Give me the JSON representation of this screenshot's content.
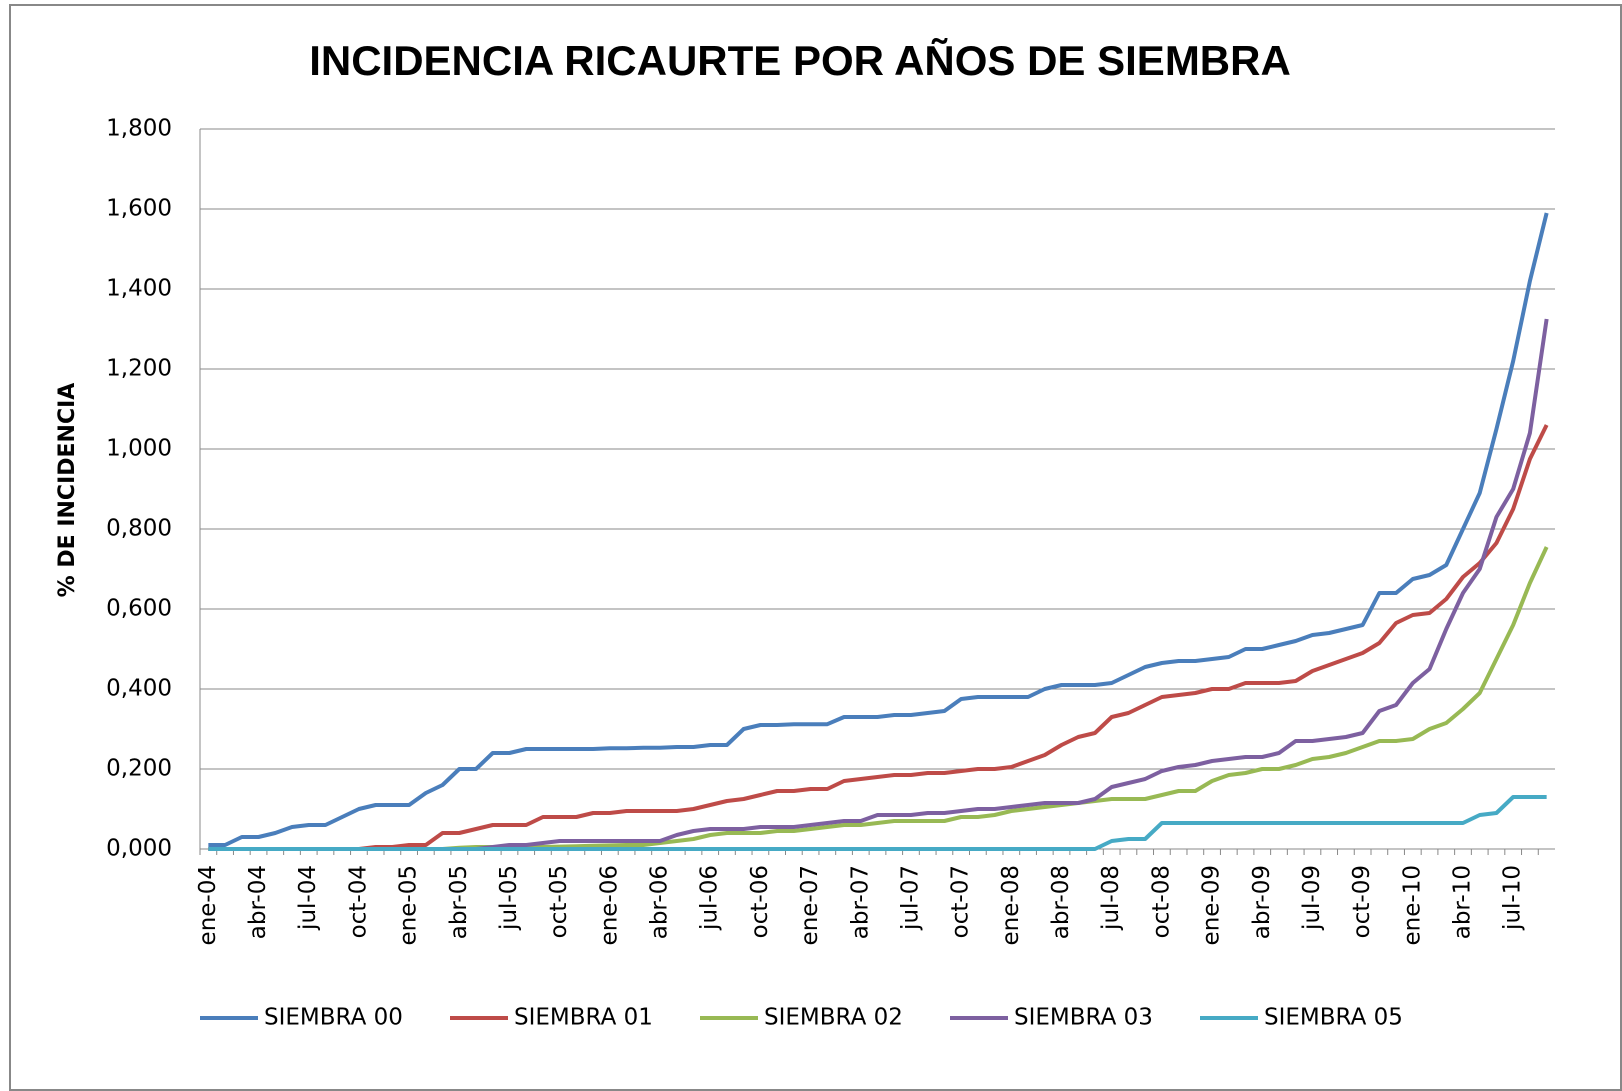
{
  "chart_data": {
    "type": "line",
    "title": "INCIDENCIA RICAURTE POR AÑOS DE SIEMBRA",
    "y_label": "% DE INCIDENCIA",
    "categories": [
      "ene-04",
      null,
      null,
      "abr-04",
      null,
      null,
      "jul-04",
      null,
      null,
      "oct-04",
      null,
      null,
      "ene-05",
      null,
      null,
      "abr-05",
      null,
      null,
      "jul-05",
      null,
      null,
      "oct-05",
      null,
      null,
      "ene-06",
      null,
      null,
      "abr-06",
      null,
      null,
      "jul-06",
      null,
      null,
      "oct-06",
      null,
      null,
      "ene-07",
      null,
      null,
      "abr-07",
      null,
      null,
      "jul-07",
      null,
      null,
      "oct-07",
      null,
      null,
      "ene-08",
      null,
      null,
      "abr-08",
      null,
      null,
      "jul-08",
      null,
      null,
      "oct-08",
      null,
      null,
      "ene-09",
      null,
      null,
      "abr-09",
      null,
      null,
      "jul-09",
      null,
      null,
      "oct-09",
      null,
      null,
      "ene-10",
      null,
      null,
      "abr-10",
      null,
      null,
      "jul-10",
      null,
      null
    ],
    "ylim": [
      0,
      1.8
    ],
    "yticks": [
      {
        "value": 0,
        "label": "0,000"
      },
      {
        "value": 0.2,
        "label": "0,200"
      },
      {
        "value": 0.4,
        "label": "0,400"
      },
      {
        "value": 0.6,
        "label": "0,600"
      },
      {
        "value": 0.8,
        "label": "0,800"
      },
      {
        "value": 1,
        "label": "1,000"
      },
      {
        "value": 1.2,
        "label": "1,200"
      },
      {
        "value": 1.4,
        "label": "1,400"
      },
      {
        "value": 1.6,
        "label": "1,600"
      },
      {
        "value": 1.8,
        "label": "1,800"
      }
    ],
    "grid": true,
    "legend": "bottom",
    "series": [
      {
        "name": "SIEMBRA 00",
        "color": "#4a7ebb",
        "values": [
          0.01,
          0.01,
          0.03,
          0.03,
          0.04,
          0.055,
          0.06,
          0.06,
          0.08,
          0.1,
          0.11,
          0.11,
          0.11,
          0.14,
          0.16,
          0.2,
          0.2,
          0.24,
          0.24,
          0.25,
          0.25,
          0.25,
          0.25,
          0.25,
          0.252,
          0.252,
          0.253,
          0.253,
          0.255,
          0.255,
          0.26,
          0.26,
          0.3,
          0.31,
          0.31,
          0.312,
          0.312,
          0.312,
          0.33,
          0.33,
          0.33,
          0.335,
          0.335,
          0.34,
          0.345,
          0.375,
          0.38,
          0.38,
          0.38,
          0.38,
          0.4,
          0.41,
          0.41,
          0.41,
          0.415,
          0.435,
          0.455,
          0.465,
          0.47,
          0.47,
          0.475,
          0.48,
          0.5,
          0.5,
          0.51,
          0.52,
          0.535,
          0.54,
          0.55,
          0.56,
          0.64,
          0.64,
          0.675,
          0.685,
          0.71,
          0.8,
          0.89,
          1.05,
          1.22,
          1.42,
          1.59
        ]
      },
      {
        "name": "SIEMBRA 01",
        "color": "#be4b48",
        "values": [
          0,
          0,
          0,
          0,
          0,
          0,
          0,
          0,
          0,
          0,
          0.005,
          0.005,
          0.01,
          0.01,
          0.04,
          0.04,
          0.05,
          0.06,
          0.06,
          0.06,
          0.08,
          0.08,
          0.08,
          0.09,
          0.09,
          0.095,
          0.095,
          0.095,
          0.095,
          0.1,
          0.11,
          0.12,
          0.125,
          0.135,
          0.145,
          0.145,
          0.15,
          0.15,
          0.17,
          0.175,
          0.18,
          0.185,
          0.185,
          0.19,
          0.19,
          0.195,
          0.2,
          0.2,
          0.205,
          0.22,
          0.235,
          0.26,
          0.28,
          0.29,
          0.33,
          0.34,
          0.36,
          0.38,
          0.385,
          0.39,
          0.4,
          0.4,
          0.415,
          0.415,
          0.415,
          0.42,
          0.445,
          0.46,
          0.475,
          0.49,
          0.515,
          0.565,
          0.585,
          0.59,
          0.625,
          0.68,
          0.715,
          0.765,
          0.85,
          0.975,
          1.06
        ]
      },
      {
        "name": "SIEMBRA 02",
        "color": "#98b954",
        "values": [
          0,
          0,
          0,
          0,
          0,
          0,
          0,
          0,
          0,
          0,
          0,
          0,
          0,
          0,
          0,
          0.003,
          0.005,
          0.005,
          0.005,
          0.005,
          0.005,
          0.006,
          0.007,
          0.008,
          0.009,
          0.01,
          0.01,
          0.015,
          0.02,
          0.025,
          0.035,
          0.04,
          0.04,
          0.04,
          0.045,
          0.045,
          0.05,
          0.055,
          0.06,
          0.06,
          0.065,
          0.07,
          0.07,
          0.07,
          0.07,
          0.08,
          0.08,
          0.085,
          0.095,
          0.1,
          0.105,
          0.11,
          0.115,
          0.12,
          0.125,
          0.125,
          0.125,
          0.135,
          0.145,
          0.145,
          0.17,
          0.185,
          0.19,
          0.2,
          0.2,
          0.21,
          0.225,
          0.23,
          0.24,
          0.255,
          0.27,
          0.27,
          0.275,
          0.3,
          0.315,
          0.35,
          0.39,
          0.475,
          0.56,
          0.665,
          0.755
        ]
      },
      {
        "name": "SIEMBRA 03",
        "color": "#7d60a0",
        "values": [
          0,
          0,
          0,
          0,
          0,
          0,
          0,
          0,
          0,
          0,
          0,
          0,
          0,
          0,
          0,
          0,
          0,
          0.005,
          0.01,
          0.01,
          0.015,
          0.02,
          0.02,
          0.02,
          0.02,
          0.02,
          0.02,
          0.02,
          0.035,
          0.045,
          0.05,
          0.05,
          0.05,
          0.055,
          0.055,
          0.055,
          0.06,
          0.065,
          0.07,
          0.07,
          0.085,
          0.085,
          0.085,
          0.09,
          0.09,
          0.095,
          0.1,
          0.1,
          0.105,
          0.11,
          0.115,
          0.115,
          0.115,
          0.125,
          0.155,
          0.165,
          0.175,
          0.195,
          0.205,
          0.21,
          0.22,
          0.225,
          0.23,
          0.23,
          0.24,
          0.27,
          0.27,
          0.275,
          0.28,
          0.29,
          0.345,
          0.36,
          0.415,
          0.45,
          0.55,
          0.64,
          0.7,
          0.83,
          0.9,
          1.04,
          1.325
        ]
      },
      {
        "name": "SIEMBRA 05",
        "color": "#46aac5",
        "values": [
          0,
          0,
          0,
          0,
          0,
          0,
          0,
          0,
          0,
          0,
          0,
          0,
          0,
          0,
          0,
          0,
          0,
          0,
          0,
          0,
          0,
          0,
          0,
          0,
          0,
          0,
          0,
          0,
          0,
          0,
          0,
          0,
          0,
          0,
          0,
          0,
          0,
          0,
          0,
          0,
          0,
          0,
          0,
          0,
          0,
          0,
          0,
          0,
          0,
          0,
          0,
          0,
          0,
          0,
          0.02,
          0.025,
          0.025,
          0.065,
          0.065,
          0.065,
          0.065,
          0.065,
          0.065,
          0.065,
          0.065,
          0.065,
          0.065,
          0.065,
          0.065,
          0.065,
          0.065,
          0.065,
          0.065,
          0.065,
          0.065,
          0.065,
          0.085,
          0.09,
          0.13,
          0.13,
          0.13
        ]
      }
    ]
  }
}
